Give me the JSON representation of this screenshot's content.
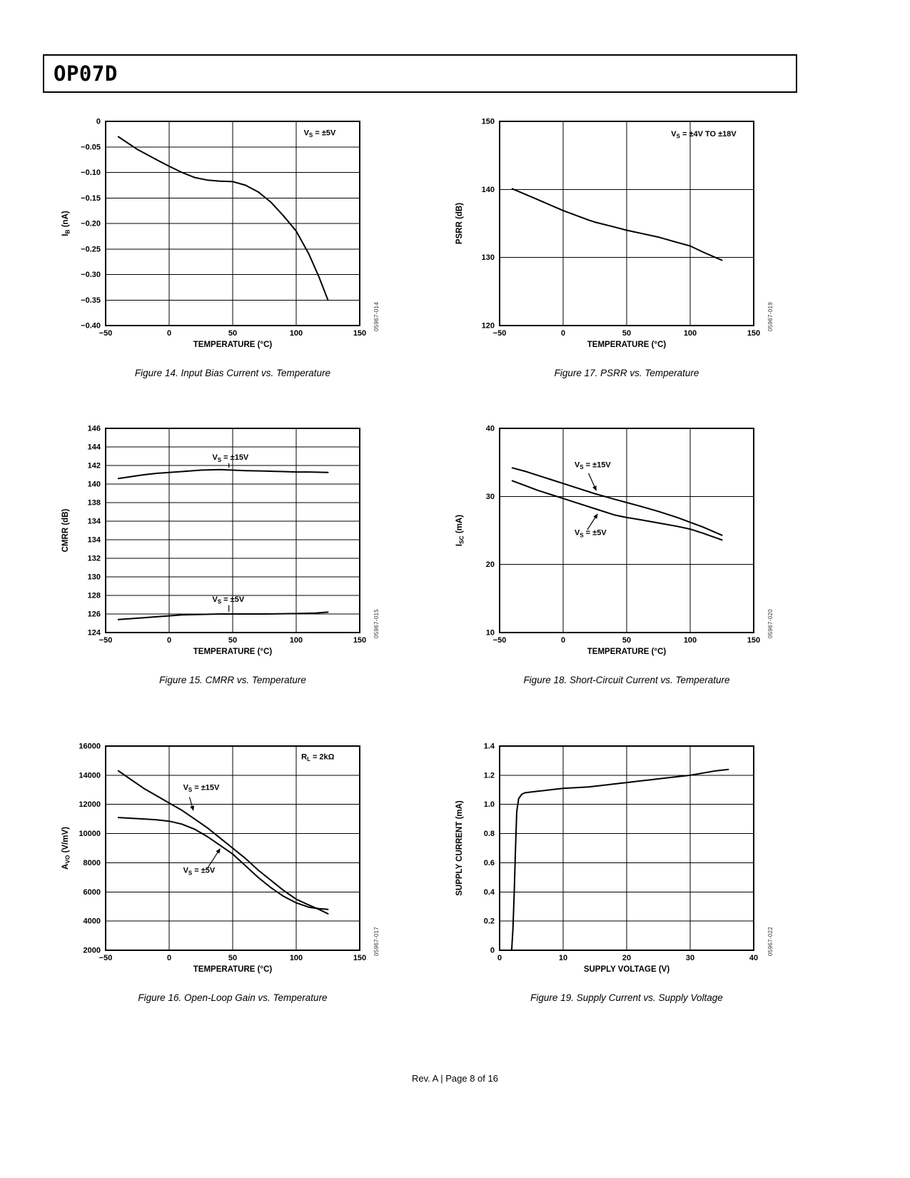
{
  "page": {
    "title": "OP07D",
    "footer": "Rev. A | Page 8 of 16"
  },
  "chart_data": [
    {
      "id": "fig14",
      "type": "line",
      "caption": "Figure 14. Input Bias Current vs. Temperature",
      "code": "05967-014",
      "xlabel": "TEMPERATURE (°C)",
      "ylabel": "I_{B} (nA)",
      "xlim": [
        -50,
        150
      ],
      "ylim": [
        -0.4,
        0
      ],
      "x_ticks": [
        "−50",
        "0",
        "50",
        "100",
        "150"
      ],
      "y_ticks": [
        "0",
        "−0.05",
        "−0.10",
        "−0.15",
        "−0.20",
        "−0.25",
        "−0.30",
        "−0.35",
        "−0.40"
      ],
      "series": [
        {
          "name": "VS = ±5V",
          "points": [
            [
              -40,
              -0.03
            ],
            [
              -25,
              -0.055
            ],
            [
              -10,
              -0.075
            ],
            [
              0,
              -0.088
            ],
            [
              10,
              -0.1
            ],
            [
              20,
              -0.11
            ],
            [
              30,
              -0.115
            ],
            [
              40,
              -0.117
            ],
            [
              50,
              -0.118
            ],
            [
              60,
              -0.125
            ],
            [
              70,
              -0.138
            ],
            [
              80,
              -0.158
            ],
            [
              90,
              -0.185
            ],
            [
              100,
              -0.215
            ],
            [
              110,
              -0.26
            ],
            [
              118,
              -0.305
            ],
            [
              125,
              -0.35
            ]
          ]
        }
      ],
      "annotations": [
        {
          "text": "V_{S} = ±5V",
          "x": 106,
          "y": -0.027
        }
      ],
      "leaders": []
    },
    {
      "id": "fig17",
      "type": "line",
      "caption": "Figure 17. PSRR vs. Temperature",
      "code": "05967-019",
      "xlabel": "TEMPERATURE (°C)",
      "ylabel": "PSRR (dB)",
      "xlim": [
        -50,
        150
      ],
      "ylim": [
        120,
        150
      ],
      "x_ticks": [
        "−50",
        "0",
        "50",
        "100",
        "150"
      ],
      "y_ticks": [
        "150",
        "140",
        "130",
        "120"
      ],
      "series": [
        {
          "name": "VS = ±4V TO ±18V",
          "points": [
            [
              -40,
              140.1
            ],
            [
              -20,
              138.5
            ],
            [
              0,
              136.9
            ],
            [
              20,
              135.5
            ],
            [
              25,
              135.2
            ],
            [
              40,
              134.5
            ],
            [
              50,
              134.0
            ],
            [
              60,
              133.6
            ],
            [
              75,
              133.0
            ],
            [
              90,
              132.2
            ],
            [
              100,
              131.7
            ],
            [
              110,
              130.8
            ],
            [
              120,
              130.0
            ],
            [
              125,
              129.6
            ]
          ]
        }
      ],
      "annotations": [
        {
          "text": "V_{S} = ±4V TO ±18V",
          "x": 85,
          "y": 147.8
        }
      ],
      "leaders": []
    },
    {
      "id": "fig15",
      "type": "line",
      "caption": "Figure 15. CMRR vs. Temperature",
      "code": "05967-015",
      "xlabel": "TEMPERATURE (°C)",
      "ylabel": "CMRR (dB)",
      "xlim": [
        -50,
        150
      ],
      "ylim": [
        124,
        146
      ],
      "x_ticks": [
        "−50",
        "0",
        "50",
        "100",
        "150"
      ],
      "y_ticks": [
        "146",
        "144",
        "142",
        "140",
        "138",
        "134",
        "134",
        "132",
        "130",
        "128",
        "126",
        "124"
      ],
      "series": [
        {
          "name": "VS = ±15V",
          "points": [
            [
              -40,
              140.6
            ],
            [
              -30,
              140.8
            ],
            [
              -20,
              141.0
            ],
            [
              -10,
              141.15
            ],
            [
              0,
              141.25
            ],
            [
              10,
              141.35
            ],
            [
              25,
              141.5
            ],
            [
              40,
              141.55
            ],
            [
              50,
              141.5
            ],
            [
              60,
              141.45
            ],
            [
              75,
              141.4
            ],
            [
              90,
              141.35
            ],
            [
              100,
              141.3
            ],
            [
              110,
              141.3
            ],
            [
              125,
              141.25
            ]
          ]
        },
        {
          "name": "VS = ±5V",
          "points": [
            [
              -40,
              125.4
            ],
            [
              -30,
              125.5
            ],
            [
              -20,
              125.6
            ],
            [
              -10,
              125.7
            ],
            [
              0,
              125.8
            ],
            [
              10,
              125.9
            ],
            [
              25,
              125.95
            ],
            [
              40,
              126.0
            ],
            [
              50,
              126.0
            ],
            [
              75,
              126.0
            ],
            [
              100,
              126.05
            ],
            [
              115,
              126.1
            ],
            [
              125,
              126.2
            ]
          ]
        }
      ],
      "annotations": [
        {
          "text": "V_{S} = ±15V",
          "x": 34,
          "y": 142.6
        },
        {
          "text": "V_{S} = ±5V",
          "x": 34,
          "y": 127.3
        }
      ],
      "leaders": [
        {
          "x1": 47,
          "y1": 142.25,
          "x2": 47,
          "y2": 141.75,
          "arrow": false
        },
        {
          "x1": 47,
          "y1": 126.95,
          "x2": 47,
          "y2": 126.25,
          "arrow": false
        }
      ]
    },
    {
      "id": "fig18",
      "type": "line",
      "caption": "Figure 18. Short-Circuit Current vs. Temperature",
      "code": "05967-020",
      "xlabel": "TEMPERATURE (°C)",
      "ylabel": "I_{SC} (mA)",
      "xlim": [
        -50,
        150
      ],
      "ylim": [
        10,
        40
      ],
      "x_ticks": [
        "−50",
        "0",
        "50",
        "100",
        "150"
      ],
      "y_ticks": [
        "40",
        "30",
        "20",
        "10"
      ],
      "series": [
        {
          "name": "VS = ±15V",
          "points": [
            [
              -40,
              34.2
            ],
            [
              -30,
              33.7
            ],
            [
              -20,
              33.1
            ],
            [
              -10,
              32.5
            ],
            [
              0,
              31.9
            ],
            [
              10,
              31.3
            ],
            [
              25,
              30.4
            ],
            [
              40,
              29.6
            ],
            [
              50,
              29.1
            ],
            [
              60,
              28.6
            ],
            [
              75,
              27.8
            ],
            [
              90,
              26.9
            ],
            [
              100,
              26.2
            ],
            [
              110,
              25.5
            ],
            [
              125,
              24.3
            ]
          ]
        },
        {
          "name": "VS = ±5V",
          "points": [
            [
              -40,
              32.3
            ],
            [
              -30,
              31.6
            ],
            [
              -20,
              30.9
            ],
            [
              -10,
              30.3
            ],
            [
              0,
              29.7
            ],
            [
              10,
              29.1
            ],
            [
              25,
              28.2
            ],
            [
              40,
              27.3
            ],
            [
              50,
              26.9
            ],
            [
              60,
              26.6
            ],
            [
              75,
              26.1
            ],
            [
              90,
              25.6
            ],
            [
              100,
              25.2
            ],
            [
              110,
              24.6
            ],
            [
              125,
              23.6
            ]
          ]
        }
      ],
      "annotations": [
        {
          "text": "V_{S} = ±15V",
          "x": 9,
          "y": 34.3
        },
        {
          "text": "V_{S} = ±5V",
          "x": 9,
          "y": 24.3
        }
      ],
      "leaders": [
        {
          "x1": 20,
          "y1": 33.4,
          "x2": 26,
          "y2": 30.9,
          "arrow": true
        },
        {
          "x1": 19,
          "y1": 25.1,
          "x2": 27,
          "y2": 27.4,
          "arrow": true
        }
      ]
    },
    {
      "id": "fig16",
      "type": "line",
      "caption": "Figure 16. Open-Loop Gain vs. Temperature",
      "code": "05967-017",
      "xlabel": "TEMPERATURE (°C)",
      "ylabel": "A_{VO} (V/mV)",
      "xlim": [
        -50,
        150
      ],
      "ylim": [
        2000,
        16000
      ],
      "x_ticks": [
        "−50",
        "0",
        "50",
        "100",
        "150"
      ],
      "y_ticks": [
        "16000",
        "14000",
        "12000",
        "10000",
        "8000",
        "6000",
        "4000",
        "2000"
      ],
      "series": [
        {
          "name": "VS = ±15V",
          "points": [
            [
              -40,
              14300
            ],
            [
              -30,
              13700
            ],
            [
              -20,
              13100
            ],
            [
              -10,
              12600
            ],
            [
              0,
              12100
            ],
            [
              10,
              11600
            ],
            [
              20,
              11000
            ],
            [
              30,
              10400
            ],
            [
              40,
              9700
            ],
            [
              50,
              9000
            ],
            [
              60,
              8300
            ],
            [
              70,
              7500
            ],
            [
              80,
              6800
            ],
            [
              90,
              6100
            ],
            [
              100,
              5500
            ],
            [
              110,
              5100
            ],
            [
              118,
              4800
            ],
            [
              125,
              4500
            ]
          ]
        },
        {
          "name": "VS = ±5V",
          "points": [
            [
              -40,
              11100
            ],
            [
              -30,
              11050
            ],
            [
              -20,
              11000
            ],
            [
              -10,
              10950
            ],
            [
              0,
              10850
            ],
            [
              10,
              10650
            ],
            [
              20,
              10300
            ],
            [
              30,
              9800
            ],
            [
              40,
              9200
            ],
            [
              50,
              8600
            ],
            [
              60,
              7800
            ],
            [
              70,
              7000
            ],
            [
              80,
              6300
            ],
            [
              90,
              5700
            ],
            [
              100,
              5250
            ],
            [
              110,
              4950
            ],
            [
              118,
              4850
            ],
            [
              125,
              4800
            ]
          ]
        }
      ],
      "annotations": [
        {
          "text": "R_{L} = 2kΩ",
          "x": 104,
          "y": 15100
        },
        {
          "text": "V_{S} = ±15V",
          "x": 11,
          "y": 13000
        },
        {
          "text": "V_{S} = ±5V",
          "x": 11,
          "y": 7300
        }
      ],
      "leaders": [
        {
          "x1": 16,
          "y1": 12500,
          "x2": 19,
          "y2": 11600,
          "arrow": true
        },
        {
          "x1": 30,
          "y1": 7600,
          "x2": 40,
          "y2": 8950,
          "arrow": true
        }
      ]
    },
    {
      "id": "fig19",
      "type": "line",
      "caption": "Figure 19. Supply Current vs. Supply Voltage",
      "code": "05967-022",
      "xlabel": "SUPPLY VOLTAGE (V)",
      "ylabel": "SUPPLY CURRENT (mA)",
      "xlim": [
        0,
        40
      ],
      "ylim": [
        0,
        1.4
      ],
      "x_ticks": [
        "0",
        "10",
        "20",
        "30",
        "40"
      ],
      "y_ticks": [
        "1.4",
        "1.2",
        "1.0",
        "0.8",
        "0.6",
        "0.4",
        "0.2",
        "0"
      ],
      "series": [
        {
          "name": "supply current",
          "points": [
            [
              1.9,
              0
            ],
            [
              2.1,
              0.15
            ],
            [
              2.3,
              0.4
            ],
            [
              2.5,
              0.7
            ],
            [
              2.7,
              0.95
            ],
            [
              3.0,
              1.04
            ],
            [
              3.5,
              1.07
            ],
            [
              4,
              1.08
            ],
            [
              6,
              1.09
            ],
            [
              8,
              1.1
            ],
            [
              10,
              1.11
            ],
            [
              12,
              1.115
            ],
            [
              14,
              1.12
            ],
            [
              16,
              1.13
            ],
            [
              18,
              1.14
            ],
            [
              20,
              1.15
            ],
            [
              22,
              1.16
            ],
            [
              24,
              1.17
            ],
            [
              26,
              1.18
            ],
            [
              28,
              1.19
            ],
            [
              30,
              1.2
            ],
            [
              32,
              1.215
            ],
            [
              34,
              1.23
            ],
            [
              36,
              1.24
            ]
          ]
        }
      ],
      "annotations": [],
      "leaders": []
    }
  ]
}
